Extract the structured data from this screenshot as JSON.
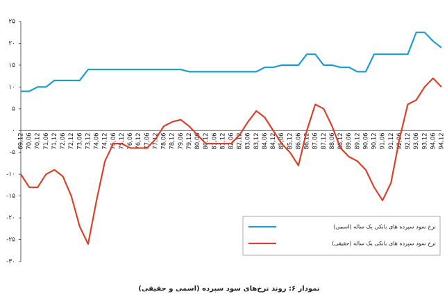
{
  "chart_data": {
    "type": "line",
    "title": "نمودار ۶: روند نرخ‌های سود سپرده (اسمی و حقیقی)",
    "categories": [
      "69,12",
      "70,06",
      "70,12",
      "71,06",
      "71,12",
      "72,06",
      "72,12",
      "73,06",
      "73,12",
      "74,06",
      "74,12",
      "75,06",
      "75,12",
      "76,06",
      "76,12",
      "77,06",
      "77,12",
      "78,06",
      "78,12",
      "79,06",
      "79,12",
      "80,06",
      "80,12",
      "81,06",
      "81,12",
      "82,06",
      "82,12",
      "83,06",
      "83,12",
      "84,06",
      "84,12",
      "85,06",
      "85,12",
      "86,06",
      "86,12",
      "87,06",
      "87,12",
      "88,06",
      "88,12",
      "89,06",
      "89,12",
      "90,06",
      "90,12",
      "91,06",
      "91,12",
      "92,06",
      "92,12",
      "93,06",
      "93,12",
      "94,06",
      "94,12"
    ],
    "series": [
      {
        "name": "نرخ سود سپرده های بانکی یک ساله (اسمی)",
        "color": "#1f9bcf",
        "values": [
          9,
          9,
          10,
          10,
          11.5,
          11.5,
          11.5,
          11.5,
          14,
          14,
          14,
          14,
          14,
          14,
          14,
          14,
          14,
          14,
          14,
          14,
          13.5,
          13.5,
          13.5,
          13.5,
          13.5,
          13.5,
          13.5,
          13.5,
          13.5,
          14.5,
          14.5,
          15,
          15,
          15,
          17.5,
          17.5,
          15,
          15,
          14.5,
          14.5,
          13.5,
          13.5,
          17.5,
          17.5,
          17.5,
          17.5,
          17.5,
          22.5,
          22.5,
          20.5,
          19
        ]
      },
      {
        "name": "نرخ سود سپرده های بانکی یک ساله (حقیقی)",
        "color": "#d9412b",
        "values": [
          -10,
          -13,
          -13,
          -10,
          -9,
          -10.5,
          -15,
          -22,
          -26,
          -16,
          -7,
          -3,
          -3,
          -4,
          -4,
          -4,
          -2,
          1,
          2,
          2.5,
          1,
          -1,
          -3,
          -3,
          -3,
          -3,
          -1,
          2,
          4.5,
          3,
          0,
          -3,
          -5,
          -8,
          0,
          6,
          5,
          1,
          -4,
          -6,
          -7,
          -9,
          -13,
          -16,
          -12,
          -2,
          6,
          7,
          10,
          12,
          10
        ]
      }
    ],
    "ylim": [
      -30,
      25
    ],
    "yticks": [
      {
        "value": 25,
        "label": "۲۵"
      },
      {
        "value": 20,
        "label": "۲۰"
      },
      {
        "value": 15,
        "label": "۱۵"
      },
      {
        "value": 10,
        "label": "۱۰"
      },
      {
        "value": 5,
        "label": "۵"
      },
      {
        "value": 0,
        "label": "۰"
      },
      {
        "value": -5,
        "label": "-۵"
      },
      {
        "value": -10,
        "label": "-۱۰"
      },
      {
        "value": -15,
        "label": "-۱۵"
      },
      {
        "value": -20,
        "label": "-۲۰"
      },
      {
        "value": -25,
        "label": "-۲۵"
      },
      {
        "value": -30,
        "label": "-۳۰"
      }
    ],
    "grid": false,
    "legend": "lower right"
  }
}
